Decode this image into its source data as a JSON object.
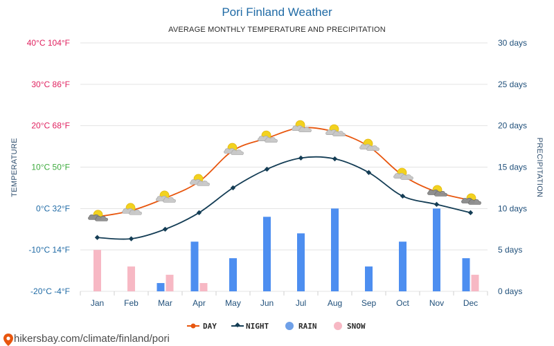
{
  "chart_data": {
    "type": "line",
    "title": "Pori Finland Weather",
    "subtitle": "AVERAGE MONTHLY TEMPERATURE AND PRECIPITATION",
    "ylabel_left": "TEMPERATURE",
    "ylabel_right": "PRECIPITATION",
    "categories": [
      "Jan",
      "Feb",
      "Mar",
      "Apr",
      "May",
      "Jun",
      "Jul",
      "Aug",
      "Sep",
      "Oct",
      "Nov",
      "Dec"
    ],
    "temp_axis": {
      "range": [
        -20,
        40
      ],
      "ticks": [
        {
          "value": 40,
          "label": "40°C 104°F",
          "color": "#e0215f"
        },
        {
          "value": 30,
          "label": "30°C 86°F",
          "color": "#e0215f"
        },
        {
          "value": 20,
          "label": "20°C 68°F",
          "color": "#e0215f"
        },
        {
          "value": 10,
          "label": "10°C 50°F",
          "color": "#3daa3d"
        },
        {
          "value": 0,
          "label": "0°C 32°F",
          "color": "#1f6aa5"
        },
        {
          "value": -10,
          "label": "-10°C 14°F",
          "color": "#1f6aa5"
        },
        {
          "value": -20,
          "label": "-20°C -4°F",
          "color": "#1f6aa5"
        }
      ]
    },
    "precip_axis": {
      "range": [
        0,
        30
      ],
      "ticks": [
        {
          "value": 30,
          "label": "30 days"
        },
        {
          "value": 25,
          "label": "25 days"
        },
        {
          "value": 20,
          "label": "20 days"
        },
        {
          "value": 15,
          "label": "15 days"
        },
        {
          "value": 10,
          "label": "10 days"
        },
        {
          "value": 5,
          "label": "5 days"
        },
        {
          "value": 0,
          "label": "0 days"
        }
      ]
    },
    "series": [
      {
        "name": "DAY",
        "kind": "line",
        "color": "#e8560e",
        "values": [
          -2,
          -0.5,
          2.5,
          6.5,
          14,
          17,
          19.5,
          18.5,
          15,
          8,
          4,
          2
        ]
      },
      {
        "name": "NIGHT",
        "kind": "line",
        "color": "#143d55",
        "values": [
          -7,
          -7.3,
          -5,
          -1,
          5,
          9.5,
          12.2,
          12,
          8.7,
          3,
          1,
          -1
        ]
      },
      {
        "name": "RAIN",
        "kind": "bar",
        "color": "#4d8ef0",
        "values": [
          0,
          0,
          1,
          6,
          4,
          9,
          7,
          10,
          3,
          6,
          10,
          4
        ]
      },
      {
        "name": "SNOW",
        "kind": "bar",
        "color": "#f7b8c4",
        "values": [
          5,
          3,
          2,
          1,
          0,
          0,
          0,
          0,
          0,
          0,
          0,
          2
        ]
      }
    ],
    "weather_icons": [
      "cloudy-sun",
      "partly-sunny",
      "partly-sunny",
      "partly-sunny",
      "partly-sunny",
      "partly-sunny",
      "partly-sunny",
      "partly-sunny",
      "partly-sunny",
      "partly-sunny",
      "cloudy-sun",
      "cloudy-sun"
    ],
    "legend": [
      "DAY",
      "NIGHT",
      "RAIN",
      "SNOW"
    ],
    "legend_position": "bottom"
  },
  "source": "hikersbay.com/climate/finland/pori",
  "colors": {
    "title": "#1f6aa5",
    "grid": "#e3e3e3",
    "right_axis": "#1f4f7a",
    "cloud": "#c8c8c8",
    "cloud_dark": "#8f8f8f",
    "sun": "#f2d21f"
  }
}
